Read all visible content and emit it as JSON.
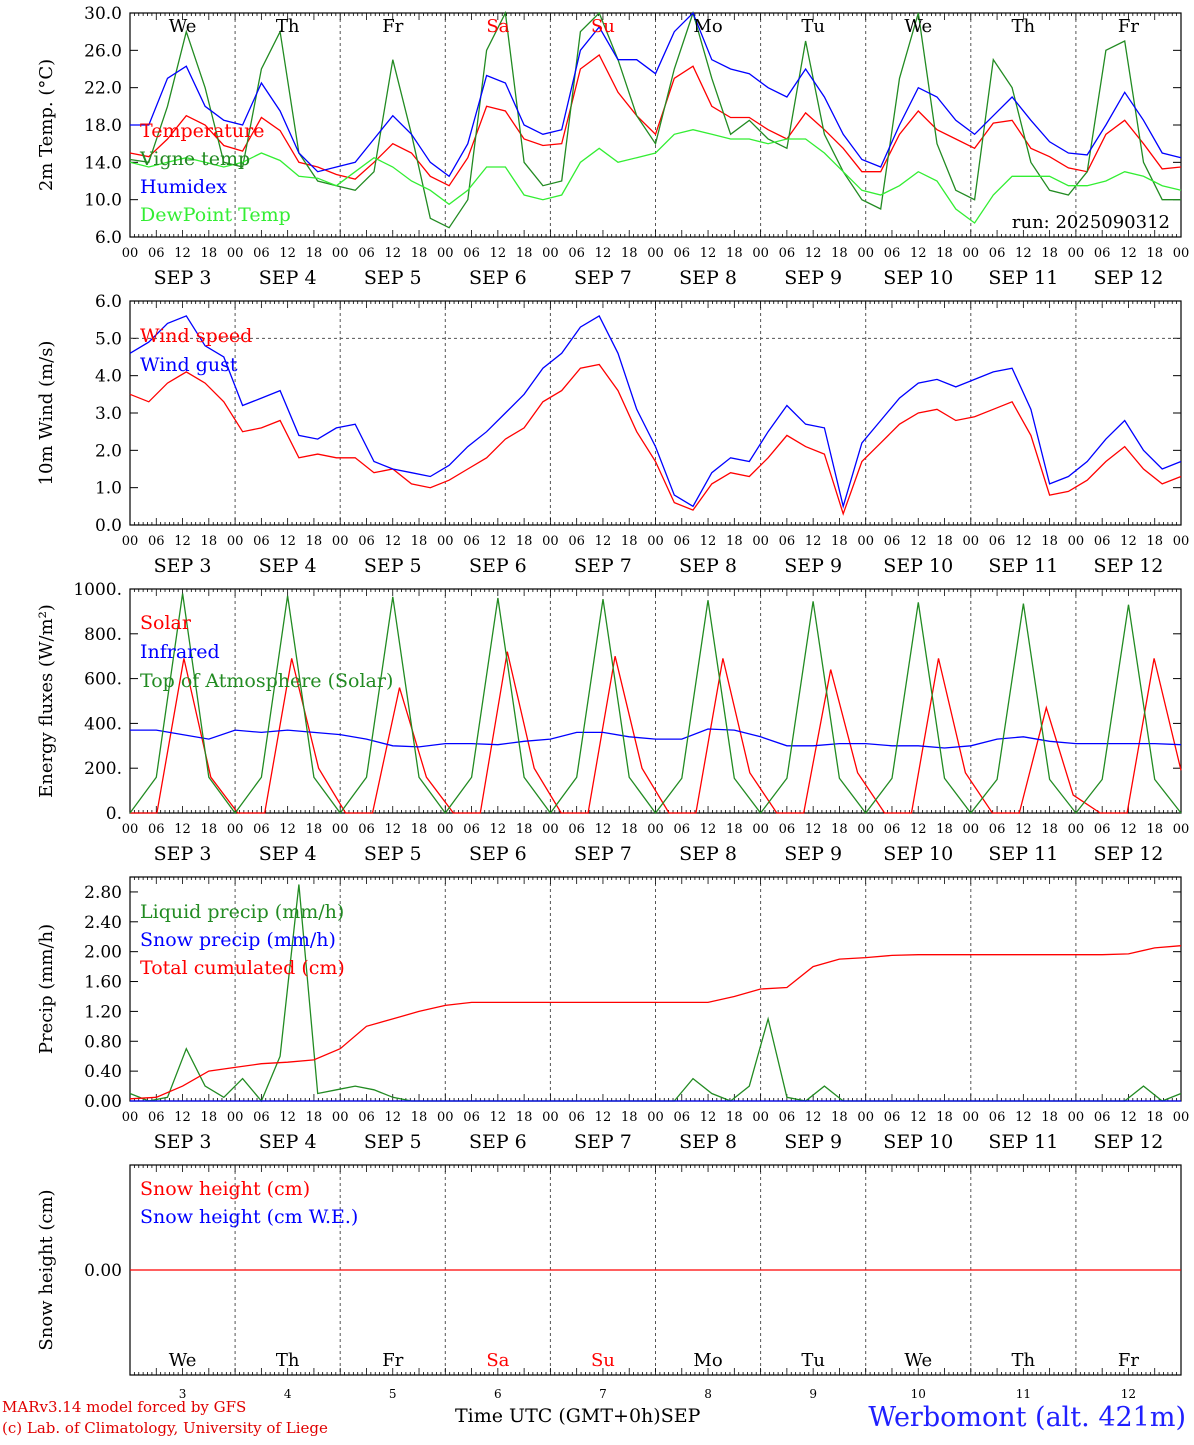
{
  "colors": {
    "red": "#ff0000",
    "darkgreen": "#228b22",
    "blue": "#0000ff",
    "lightgreen": "#33ee33",
    "weekend": "#ff0000"
  },
  "time_axis": {
    "hour_ticks": [
      "00",
      "06",
      "12",
      "18",
      "00",
      "06",
      "12",
      "18",
      "00",
      "06",
      "12",
      "18",
      "00",
      "06",
      "12",
      "18",
      "00",
      "06",
      "12",
      "18",
      "00",
      "06",
      "12",
      "18",
      "00",
      "06",
      "12",
      "18",
      "00",
      "06",
      "12",
      "18",
      "00",
      "06",
      "12",
      "18",
      "00",
      "06",
      "12",
      "18",
      "00"
    ],
    "date_labels": [
      "SEP  3",
      "SEP  4",
      "SEP  5",
      "SEP  6",
      "SEP  7",
      "SEP  8",
      "SEP  9",
      "SEP 10",
      "SEP 11",
      "SEP 12"
    ],
    "weekdays": [
      "We",
      "Th",
      "Fr",
      "Sa",
      "Su",
      "Mo",
      "Tu",
      "We",
      "Th",
      "Fr"
    ],
    "weekend_days": [
      "Sa",
      "Su"
    ],
    "day_numbers": [
      "3",
      "4",
      "5",
      "6",
      "7",
      "8",
      "9",
      "10",
      "11",
      "12"
    ]
  },
  "footer": {
    "model": "MARv3.14 model forced by GFS",
    "copyright": "(c) Lab. of Climatology, University of Liege",
    "xlabel": "Time UTC (GMT+0h)",
    "month": "SEP",
    "station": "Werbomont (alt. 421m)"
  },
  "chart_data": [
    {
      "type": "line",
      "ylabel": "2m Temp. (°C)",
      "ylim": [
        6,
        30
      ],
      "yticks": [
        "6.0",
        "10.0",
        "14.0",
        "18.0",
        "22.0",
        "26.0",
        "30.0"
      ],
      "run_label": "run: 2025090312",
      "x_hours_start": 0,
      "x_hours_step": 6,
      "series": [
        {
          "name": "Temperature",
          "color": "#ff0000",
          "values": [
            15,
            14.6,
            16.5,
            19,
            18,
            15.8,
            15.2,
            18.8,
            17.4,
            14,
            13.5,
            12.7,
            12.2,
            14,
            16,
            15,
            12.5,
            11.5,
            14.5,
            20,
            19.5,
            16.5,
            15.8,
            16,
            24,
            25.5,
            21.5,
            19,
            17,
            23,
            24.3,
            20,
            18.8,
            18.8,
            17.5,
            16.5,
            19.3,
            17.5,
            15.5,
            13,
            13,
            17,
            19.5,
            17.5,
            16.5,
            15.5,
            18.2,
            18.5,
            15.5,
            14.6,
            13.4,
            13,
            17,
            18.5,
            16,
            13.3,
            13.5
          ]
        },
        {
          "name": "Vigne temp",
          "color": "#228b22",
          "values": [
            14.3,
            14,
            20,
            28,
            22,
            14,
            13.5,
            24,
            28,
            15,
            12,
            11.5,
            11,
            13,
            25,
            17,
            8,
            7,
            10,
            26,
            30,
            14,
            11.5,
            12,
            28,
            30,
            25,
            19,
            16,
            24,
            30,
            23,
            17,
            18.5,
            16.5,
            15.5,
            27,
            17,
            13,
            10,
            9,
            23,
            30,
            16,
            11,
            10,
            25,
            22,
            14,
            11,
            10.5,
            13,
            26,
            27,
            14,
            10,
            10
          ]
        },
        {
          "name": "Humidex",
          "color": "#0000ff",
          "values": [
            18,
            18,
            23,
            24.3,
            20,
            18.5,
            18,
            22.5,
            19.5,
            15,
            13,
            13.5,
            14,
            16.5,
            19,
            17,
            14,
            12.5,
            16,
            23.3,
            22.5,
            18,
            17,
            17.5,
            26,
            28.5,
            25,
            25,
            23.5,
            28,
            30,
            25,
            24,
            23.5,
            22,
            21,
            24,
            21,
            17,
            14.3,
            13.5,
            18,
            22,
            21,
            18.5,
            17,
            19,
            21,
            18.5,
            16.2,
            15,
            14.8,
            18,
            21.5,
            18.5,
            15,
            14.5
          ]
        },
        {
          "name": "DewPoint Temp",
          "color": "#33ee33",
          "values": [
            14,
            13.5,
            14,
            14.5,
            14,
            13.5,
            14,
            15,
            14.2,
            12.5,
            12.3,
            11.5,
            13,
            14.5,
            13.5,
            12,
            11,
            9.5,
            11,
            13.5,
            13.5,
            10.5,
            10,
            10.5,
            14,
            15.5,
            14,
            14.5,
            15,
            17,
            17.5,
            17,
            16.5,
            16.5,
            16,
            16.5,
            16.5,
            15,
            13,
            11,
            10.5,
            11.5,
            13,
            12,
            9,
            7.5,
            10.5,
            12.5,
            12.5,
            12.5,
            11.5,
            11.5,
            12,
            13,
            12.5,
            11.5,
            11
          ]
        }
      ]
    },
    {
      "type": "line",
      "ylabel": "10m Wind (m/s)",
      "ylim": [
        0,
        6
      ],
      "yticks": [
        "0.0",
        "1.0",
        "2.0",
        "3.0",
        "4.0",
        "5.0",
        "6.0"
      ],
      "x_hours_start": 0,
      "x_hours_step": 6,
      "series": [
        {
          "name": "Wind speed",
          "color": "#ff0000",
          "values": [
            3.5,
            3.3,
            3.8,
            4.1,
            3.8,
            3.3,
            2.5,
            2.6,
            2.8,
            1.8,
            1.9,
            1.8,
            1.8,
            1.4,
            1.5,
            1.1,
            1,
            1.2,
            1.5,
            1.8,
            2.3,
            2.6,
            3.3,
            3.6,
            4.2,
            4.3,
            3.6,
            2.5,
            1.7,
            0.6,
            0.4,
            1.1,
            1.4,
            1.3,
            1.8,
            2.4,
            2.1,
            1.9,
            0.3,
            1.7,
            2.2,
            2.7,
            3,
            3.1,
            2.8,
            2.9,
            3.1,
            3.3,
            2.4,
            0.8,
            0.9,
            1.2,
            1.7,
            2.1,
            1.5,
            1.1,
            1.3
          ]
        },
        {
          "name": "Wind gust",
          "color": "#0000ff",
          "values": [
            4.6,
            4.9,
            5.4,
            5.6,
            4.8,
            4.5,
            3.2,
            3.4,
            3.6,
            2.4,
            2.3,
            2.6,
            2.7,
            1.7,
            1.5,
            1.4,
            1.3,
            1.6,
            2.1,
            2.5,
            3,
            3.5,
            4.2,
            4.6,
            5.3,
            5.6,
            4.6,
            3.1,
            2.1,
            0.8,
            0.5,
            1.4,
            1.8,
            1.7,
            2.5,
            3.2,
            2.7,
            2.6,
            0.5,
            2.2,
            2.8,
            3.4,
            3.8,
            3.9,
            3.7,
            3.9,
            4.1,
            4.2,
            3.1,
            1.1,
            1.3,
            1.7,
            2.3,
            2.8,
            2,
            1.5,
            1.7
          ]
        }
      ]
    },
    {
      "type": "line",
      "ylabel": "Energy fluxes (W/m²)",
      "ylim": [
        0,
        1000
      ],
      "yticks": [
        "0.",
        "200.",
        "400.",
        "600.",
        "800.",
        "1000."
      ],
      "x_hours_start": 0,
      "x_hours_step": 6,
      "series": [
        {
          "name": "Solar",
          "color": "#ff0000",
          "values": [
            0,
            0,
            690,
            160,
            0,
            0,
            690,
            200,
            0,
            0,
            560,
            160,
            0,
            0,
            720,
            200,
            0,
            0,
            700,
            200,
            0,
            0,
            690,
            180,
            0,
            0,
            640,
            180,
            0,
            0,
            690,
            180,
            0,
            0,
            470,
            80,
            0,
            0,
            690,
            190
          ]
        },
        {
          "name": "Infrared",
          "color": "#0000ff",
          "values": [
            370,
            370,
            350,
            330,
            370,
            360,
            370,
            360,
            350,
            330,
            300,
            295,
            310,
            310,
            305,
            320,
            330,
            360,
            360,
            340,
            330,
            330,
            375,
            370,
            340,
            300,
            300,
            310,
            310,
            300,
            300,
            290,
            300,
            330,
            340,
            320,
            310,
            310,
            310,
            310,
            305
          ]
        },
        {
          "name": "Top of Atmosphere (Solar)",
          "color": "#228b22",
          "values": [
            0,
            160,
            980,
            160,
            0,
            160,
            970,
            160,
            0,
            160,
            965,
            160,
            0,
            160,
            960,
            160,
            0,
            160,
            955,
            160,
            0,
            155,
            950,
            155,
            0,
            155,
            945,
            155,
            0,
            155,
            940,
            155,
            0,
            150,
            935,
            150,
            0,
            150,
            930,
            150,
            0
          ]
        }
      ]
    },
    {
      "type": "line",
      "ylabel": "Precip (mm/h)",
      "ylim": [
        0,
        3.0
      ],
      "yticks": [
        "0.00",
        "0.40",
        "0.80",
        "1.20",
        "1.60",
        "2.00",
        "2.40",
        "2.80"
      ],
      "x_hours_start": 0,
      "x_hours_step": 6,
      "series": [
        {
          "name": "Liquid precip (mm/h)",
          "color": "#228b22",
          "values": [
            0.1,
            0,
            0.05,
            0.7,
            0.2,
            0.05,
            0.3,
            0,
            0.6,
            2.9,
            0.1,
            0.15,
            0.2,
            0.15,
            0.05,
            0,
            0,
            0,
            0,
            0,
            0,
            0,
            0,
            0,
            0,
            0,
            0,
            0,
            0,
            0,
            0.3,
            0.1,
            0,
            0.2,
            1.1,
            0.05,
            0,
            0.2,
            0,
            0,
            0,
            0,
            0,
            0,
            0,
            0,
            0,
            0,
            0,
            0,
            0,
            0,
            0,
            0,
            0.2,
            0,
            0.1
          ]
        },
        {
          "name": "Snow precip (mm/h)",
          "color": "#0000ff",
          "values": [
            0,
            0,
            0,
            0,
            0,
            0,
            0,
            0,
            0,
            0,
            0,
            0,
            0,
            0,
            0,
            0,
            0,
            0,
            0,
            0,
            0,
            0,
            0,
            0,
            0,
            0,
            0,
            0,
            0,
            0,
            0,
            0,
            0,
            0,
            0,
            0,
            0,
            0,
            0,
            0,
            0
          ]
        },
        {
          "name": "Total cumulated (cm)",
          "color": "#ff0000",
          "values": [
            0.03,
            0.05,
            0.2,
            0.4,
            0.45,
            0.5,
            0.52,
            0.55,
            0.7,
            1.0,
            1.1,
            1.2,
            1.28,
            1.32,
            1.32,
            1.32,
            1.32,
            1.32,
            1.32,
            1.32,
            1.32,
            1.32,
            1.32,
            1.4,
            1.5,
            1.52,
            1.8,
            1.9,
            1.92,
            1.95,
            1.96,
            1.96,
            1.96,
            1.96,
            1.96,
            1.96,
            1.96,
            1.96,
            1.97,
            2.05,
            2.08
          ]
        }
      ]
    },
    {
      "type": "line",
      "ylabel": "Snow height (cm)",
      "ylim": [
        -1,
        1
      ],
      "yticks": [
        "0.00"
      ],
      "x_hours_start": 0,
      "x_hours_step": 6,
      "series": [
        {
          "name": "Snow height (cm)",
          "color": "#ff0000",
          "values": [
            0,
            0,
            0,
            0,
            0,
            0,
            0,
            0,
            0,
            0,
            0,
            0,
            0,
            0,
            0,
            0,
            0,
            0,
            0,
            0,
            0,
            0,
            0,
            0,
            0,
            0,
            0,
            0,
            0,
            0,
            0,
            0,
            0,
            0,
            0,
            0,
            0,
            0,
            0,
            0,
            0
          ]
        },
        {
          "name": "Snow height (cm W.E.)",
          "color": "#0000ff",
          "values": []
        }
      ]
    }
  ]
}
